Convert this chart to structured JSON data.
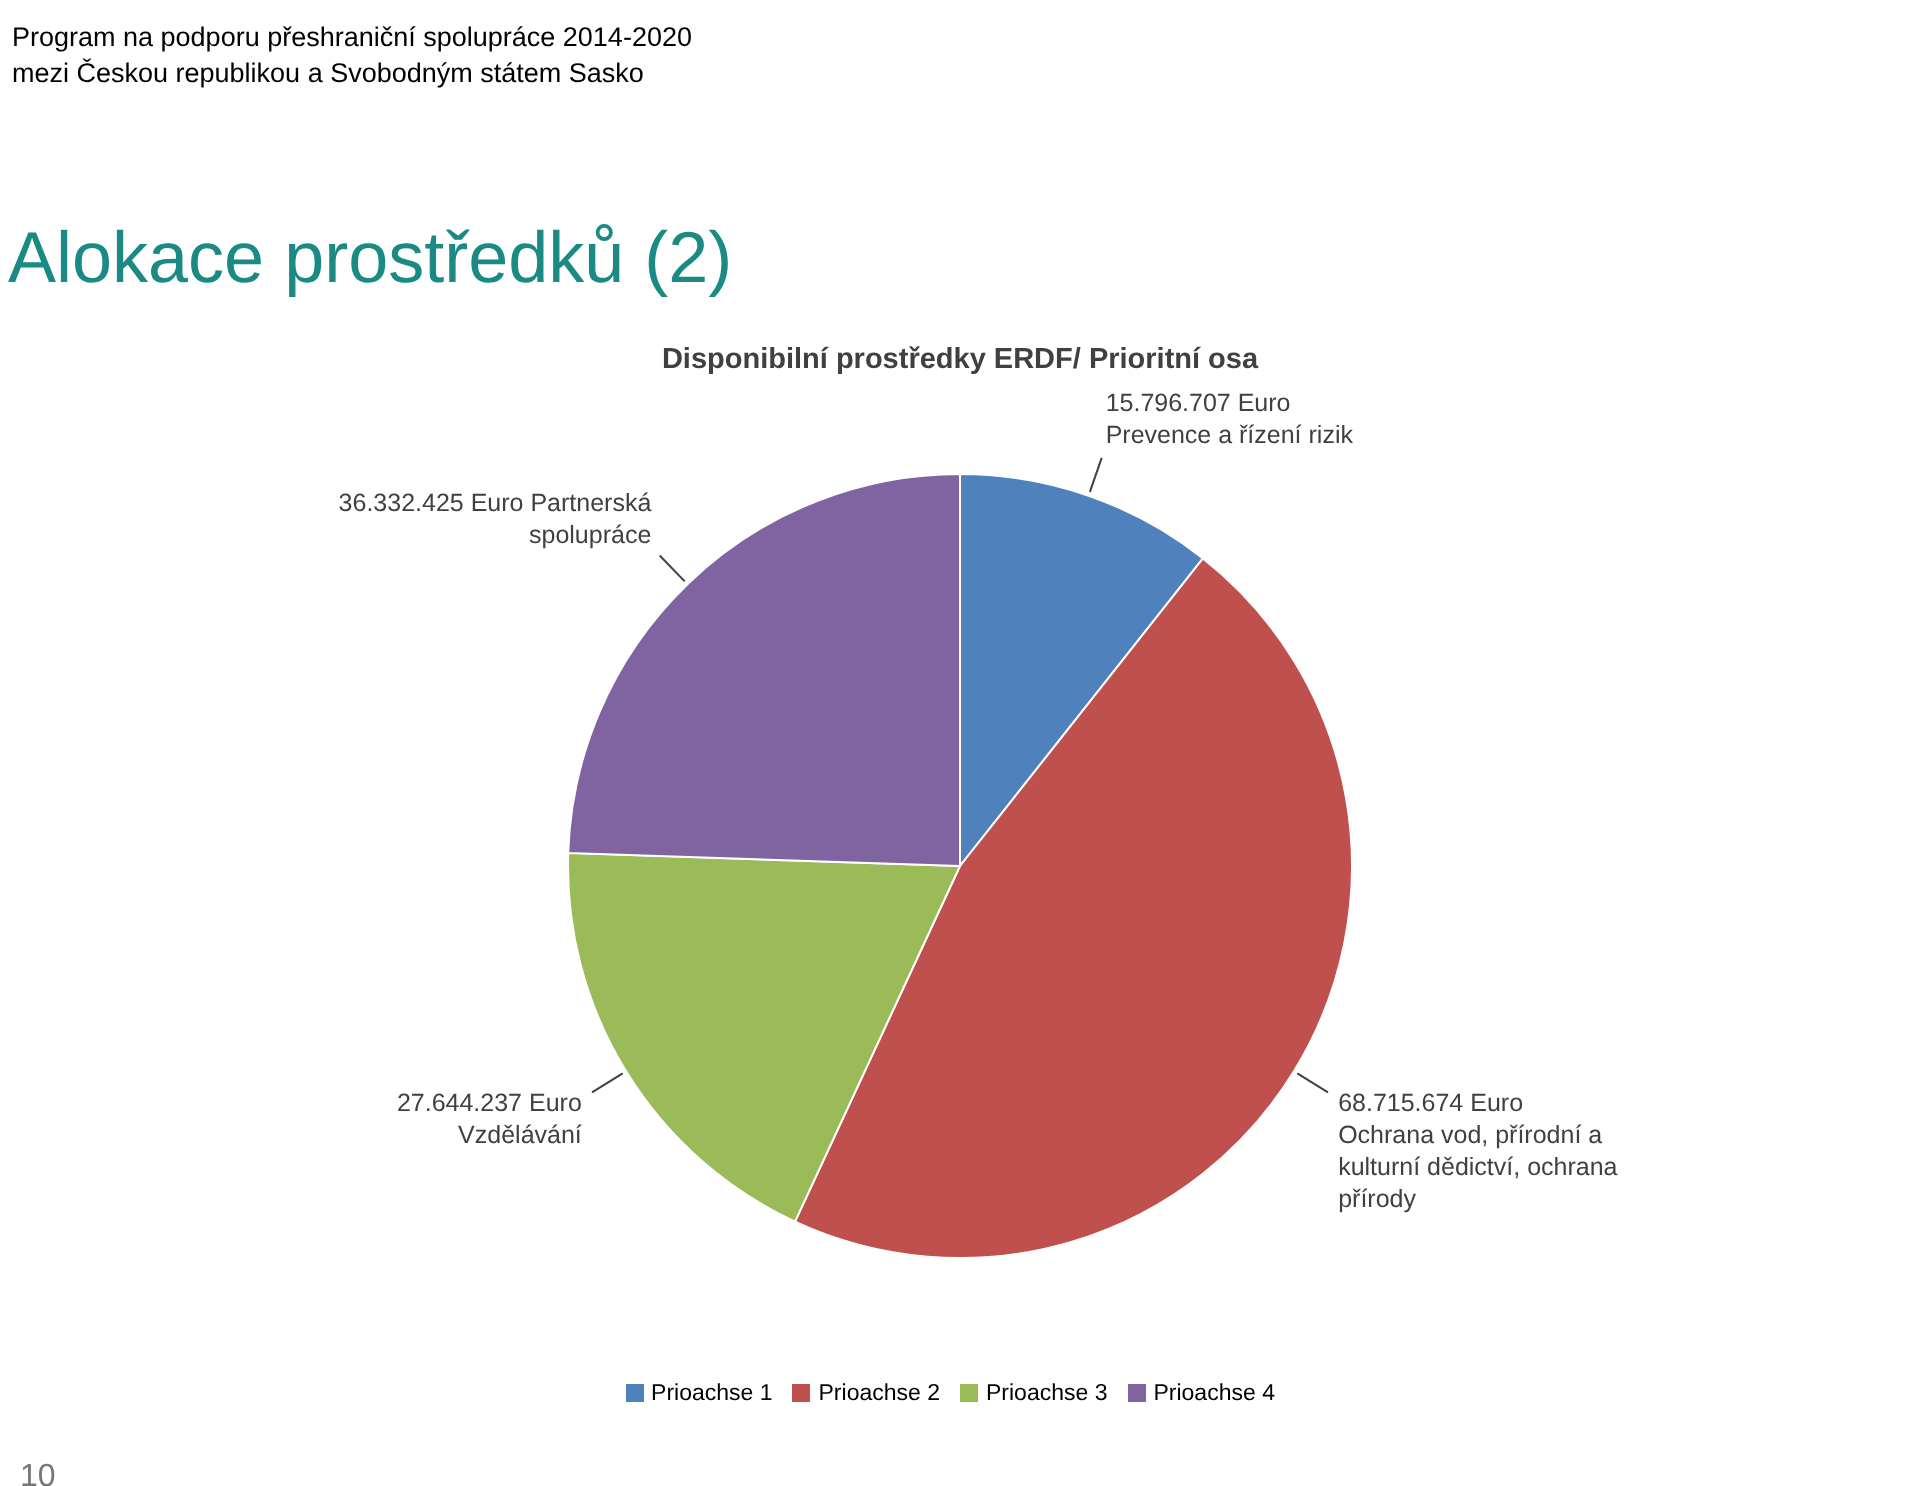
{
  "chart_data": {
    "type": "pie",
    "title": "Alokace prostředků (2)",
    "subtitle": "Disponibilní prostředky ERDF/ Prioritní osa",
    "annotations": [
      "Program na podporu přeshraniční spolupráce 2014-2020",
      "mezi Českou republikou a Svobodným státem Sasko",
      "10"
    ],
    "categories": [
      "Prioachse 1",
      "Prioachse 2",
      "Prioachse 3",
      "Prioachse 4"
    ],
    "values": [
      15796707,
      68715674,
      27644237,
      36332425
    ],
    "colors": [
      "#4f81bd",
      "#c0504d",
      "#9bbb59",
      "#8064a2"
    ],
    "value_labels": [
      "15.796.707 Euro\nPrevence a řízení rizik",
      "68.715.674 Euro\nOchrana vod, přírodní a\nkulturní dědictví, ochrana\npřírody",
      "27.644.237 Euro\nVzdělávání",
      "36.332.425 Euro Partnerská\nspolupráce"
    ],
    "legend": "bottom"
  }
}
